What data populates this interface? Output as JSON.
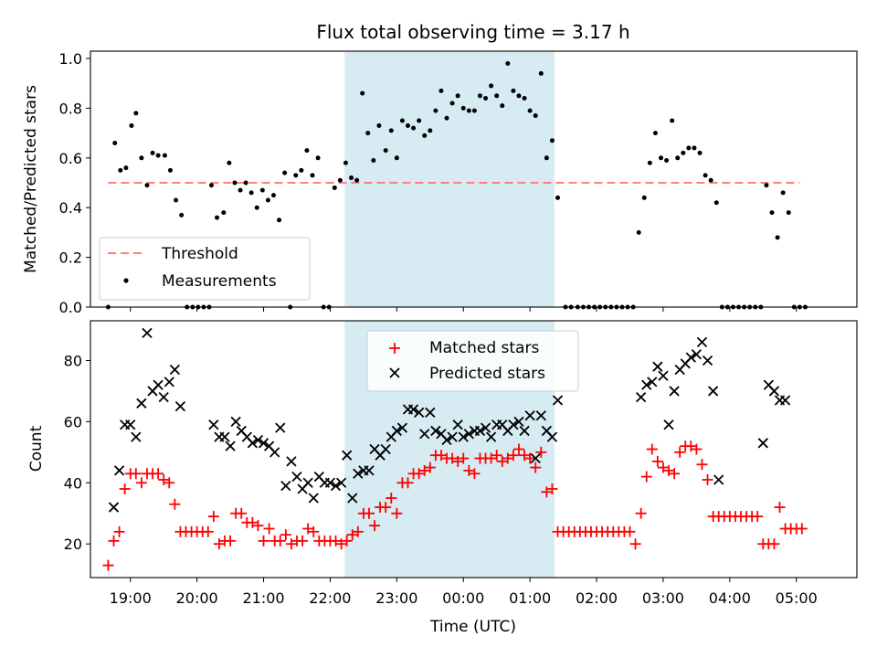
{
  "chart_data": [
    {
      "type": "scatter",
      "title": "Flux total observing time = 3.17 h",
      "xlabel": "",
      "ylabel": "Matched/Predicted stars",
      "x_tick_labels": [
        "19:00",
        "20:00",
        "21:00",
        "22:00",
        "23:00",
        "00:00",
        "01:00",
        "02:00",
        "03:00",
        "04:00",
        "05:00"
      ],
      "ylim": [
        0,
        1.0
      ],
      "y_ticks": [
        "0.0",
        "0.2",
        "0.4",
        "0.6",
        "0.8",
        "1.0"
      ],
      "shaded_interval": [
        "22:13",
        "01:22"
      ],
      "threshold": 0.5,
      "legend": [
        "Threshold",
        "Measurements"
      ],
      "legend_loc": "lower left",
      "colors": {
        "threshold": "#ff7f7f",
        "measurements": "#000000",
        "shade": "#add8e6"
      },
      "series": [
        {
          "name": "Measurements",
          "x": [
            "18:40",
            "18:46",
            "18:51",
            "18:56",
            "19:01",
            "19:05",
            "19:10",
            "19:15",
            "19:20",
            "19:25",
            "19:31",
            "19:36",
            "19:41",
            "19:46",
            "19:51",
            "19:56",
            "20:01",
            "20:06",
            "20:11",
            "20:13",
            "20:18",
            "20:24",
            "20:29",
            "20:34",
            "20:39",
            "20:44",
            "20:49",
            "20:54",
            "20:59",
            "21:04",
            "21:09",
            "21:14",
            "21:19",
            "21:24",
            "21:29",
            "21:34",
            "21:39",
            "21:44",
            "21:49",
            "21:54",
            "21:59",
            "22:04",
            "22:09",
            "22:14",
            "22:19",
            "22:24",
            "22:29",
            "22:34",
            "22:39",
            "22:44",
            "22:50",
            "22:55",
            "23:00",
            "23:05",
            "23:10",
            "23:15",
            "23:20",
            "23:25",
            "23:30",
            "23:35",
            "23:40",
            "23:45",
            "23:50",
            "23:55",
            "00:00",
            "00:05",
            "00:10",
            "00:15",
            "00:20",
            "00:25",
            "00:30",
            "00:35",
            "00:40",
            "00:45",
            "00:50",
            "00:55",
            "01:00",
            "01:05",
            "01:10",
            "01:15",
            "01:20",
            "01:25",
            "01:32",
            "01:37",
            "01:43",
            "01:48",
            "01:53",
            "01:58",
            "02:03",
            "02:08",
            "02:13",
            "02:18",
            "02:23",
            "02:28",
            "02:33",
            "02:38",
            "02:43",
            "02:48",
            "02:53",
            "02:58",
            "03:03",
            "03:08",
            "03:13",
            "03:18",
            "03:23",
            "03:28",
            "03:33",
            "03:38",
            "03:43",
            "03:48",
            "03:53",
            "03:58",
            "04:03",
            "04:08",
            "04:13",
            "04:18",
            "04:23",
            "04:28",
            "04:33",
            "04:38",
            "04:43",
            "04:48",
            "04:53",
            "04:58",
            "05:03",
            "05:08"
          ],
          "values": [
            0.0,
            0.66,
            0.55,
            0.56,
            0.73,
            0.78,
            0.6,
            0.49,
            0.62,
            0.61,
            0.61,
            0.55,
            0.43,
            0.37,
            0.0,
            0.0,
            0.0,
            0.0,
            0.0,
            0.49,
            0.36,
            0.38,
            0.58,
            0.5,
            0.47,
            0.5,
            0.46,
            0.4,
            0.47,
            0.43,
            0.45,
            0.35,
            0.54,
            0.0,
            0.53,
            0.55,
            0.63,
            0.53,
            0.6,
            0.0,
            0.0,
            0.48,
            0.51,
            0.58,
            0.52,
            0.51,
            0.86,
            0.7,
            0.59,
            0.73,
            0.63,
            0.71,
            0.6,
            0.75,
            0.73,
            0.72,
            0.75,
            0.69,
            0.71,
            0.79,
            0.87,
            0.76,
            0.82,
            0.85,
            0.8,
            0.79,
            0.79,
            0.85,
            0.84,
            0.89,
            0.85,
            0.81,
            0.98,
            0.87,
            0.85,
            0.84,
            0.79,
            0.77,
            0.94,
            0.6,
            0.67,
            0.44,
            0.0,
            0.0,
            0.0,
            0.0,
            0.0,
            0.0,
            0.0,
            0.0,
            0.0,
            0.0,
            0.0,
            0.0,
            0.0,
            0.3,
            0.44,
            0.58,
            0.7,
            0.6,
            0.59,
            0.75,
            0.6,
            0.62,
            0.64,
            0.64,
            0.62,
            0.53,
            0.51,
            0.42,
            0.0,
            0.0,
            0.0,
            0.0,
            0.0,
            0.0,
            0.0,
            0.0,
            0.49,
            0.38,
            0.28,
            0.46,
            0.38,
            0.0,
            0.0,
            0.0
          ]
        }
      ]
    },
    {
      "type": "scatter",
      "title": "",
      "xlabel": "Time (UTC)",
      "ylabel": "Count",
      "x_tick_labels": [
        "19:00",
        "20:00",
        "21:00",
        "22:00",
        "23:00",
        "00:00",
        "01:00",
        "02:00",
        "03:00",
        "04:00",
        "05:00"
      ],
      "ylim": [
        9,
        93
      ],
      "y_ticks": [
        "20",
        "40",
        "60",
        "80"
      ],
      "shaded_interval": [
        "22:13",
        "01:22"
      ],
      "legend": [
        "Matched stars",
        "Predicted stars"
      ],
      "legend_loc": "upper center",
      "colors": {
        "matched": "#ff0000",
        "predicted": "#000000",
        "shade": "#add8e6"
      },
      "series": [
        {
          "name": "Matched stars",
          "x": [
            "18:40",
            "18:45",
            "18:50",
            "18:55",
            "19:00",
            "19:05",
            "19:10",
            "19:15",
            "19:20",
            "19:25",
            "19:30",
            "19:35",
            "19:40",
            "19:45",
            "19:50",
            "19:55",
            "20:00",
            "20:05",
            "20:10",
            "20:15",
            "20:20",
            "20:25",
            "20:30",
            "20:35",
            "20:40",
            "20:45",
            "20:50",
            "20:55",
            "21:00",
            "21:05",
            "21:10",
            "21:15",
            "21:20",
            "21:25",
            "21:30",
            "21:35",
            "21:40",
            "21:45",
            "21:50",
            "21:55",
            "22:00",
            "22:05",
            "22:10",
            "22:15",
            "22:20",
            "22:25",
            "22:30",
            "22:35",
            "22:40",
            "22:45",
            "22:50",
            "22:55",
            "23:00",
            "23:05",
            "23:10",
            "23:15",
            "23:20",
            "23:25",
            "23:30",
            "23:35",
            "23:40",
            "23:45",
            "23:50",
            "23:55",
            "00:00",
            "00:05",
            "00:10",
            "00:15",
            "00:20",
            "00:25",
            "00:30",
            "00:35",
            "00:40",
            "00:45",
            "00:50",
            "00:55",
            "01:00",
            "01:05",
            "01:10",
            "01:15",
            "01:20",
            "01:25",
            "01:30",
            "01:35",
            "01:40",
            "01:45",
            "01:50",
            "01:55",
            "02:00",
            "02:05",
            "02:10",
            "02:15",
            "02:20",
            "02:25",
            "02:30",
            "02:35",
            "02:40",
            "02:45",
            "02:50",
            "02:55",
            "03:00",
            "03:05",
            "03:10",
            "03:15",
            "03:20",
            "03:25",
            "03:30",
            "03:35",
            "03:40",
            "03:45",
            "03:50",
            "03:55",
            "04:00",
            "04:05",
            "04:10",
            "04:15",
            "04:20",
            "04:25",
            "04:30",
            "04:35",
            "04:40",
            "04:45",
            "04:50",
            "04:55",
            "05:00",
            "05:05"
          ],
          "values": [
            13,
            21,
            24,
            38,
            43,
            43,
            40,
            43,
            43,
            43,
            41,
            40,
            33,
            24,
            24,
            24,
            24,
            24,
            24,
            29,
            20,
            21,
            21,
            30,
            30,
            27,
            27,
            26,
            21,
            25,
            21,
            21,
            23,
            20,
            21,
            21,
            25,
            24,
            21,
            21,
            21,
            21,
            20,
            21,
            23,
            24,
            30,
            30,
            26,
            32,
            32,
            35,
            30,
            40,
            40,
            43,
            43,
            44,
            45,
            49,
            49,
            48,
            48,
            47,
            48,
            44,
            43,
            48,
            48,
            48,
            49,
            47,
            48,
            49,
            51,
            49,
            48,
            45,
            50,
            37,
            38,
            24,
            24,
            24,
            24,
            24,
            24,
            24,
            24,
            24,
            24,
            24,
            24,
            24,
            24,
            20,
            30,
            42,
            51,
            47,
            45,
            44,
            43,
            50,
            52,
            52,
            51,
            46,
            41,
            29,
            29,
            29,
            29,
            29,
            29,
            29,
            29,
            29,
            20,
            20,
            20,
            32,
            25,
            25,
            25,
            25
          ]
        },
        {
          "name": "Predicted stars",
          "x": [
            "18:45",
            "18:50",
            "18:55",
            "19:00",
            "19:05",
            "19:10",
            "19:15",
            "19:20",
            "19:25",
            "19:30",
            "19:35",
            "19:40",
            "19:45",
            "20:15",
            "20:20",
            "20:25",
            "20:30",
            "20:35",
            "20:40",
            "20:45",
            "20:50",
            "20:55",
            "21:00",
            "21:05",
            "21:10",
            "21:15",
            "21:20",
            "21:25",
            "21:30",
            "21:35",
            "21:40",
            "21:45",
            "21:50",
            "21:55",
            "22:00",
            "22:05",
            "22:10",
            "22:15",
            "22:20",
            "22:25",
            "22:30",
            "22:35",
            "22:40",
            "22:45",
            "22:50",
            "22:55",
            "23:00",
            "23:05",
            "23:10",
            "23:15",
            "23:20",
            "23:25",
            "23:30",
            "23:35",
            "23:40",
            "23:45",
            "23:50",
            "23:55",
            "00:00",
            "00:05",
            "00:10",
            "00:15",
            "00:20",
            "00:25",
            "00:30",
            "00:35",
            "00:40",
            "00:45",
            "00:50",
            "00:55",
            "01:00",
            "01:05",
            "01:10",
            "01:15",
            "01:20",
            "01:25",
            "02:40",
            "02:45",
            "02:50",
            "02:55",
            "03:00",
            "03:05",
            "03:10",
            "03:15",
            "03:20",
            "03:25",
            "03:30",
            "03:35",
            "03:40",
            "03:45",
            "03:50",
            "04:30",
            "04:35",
            "04:40",
            "04:45",
            "04:50"
          ],
          "values": [
            32,
            44,
            59,
            59,
            55,
            66,
            89,
            70,
            72,
            68,
            73,
            77,
            65,
            59,
            55,
            55,
            52,
            60,
            57,
            55,
            53,
            54,
            53,
            52,
            50,
            58,
            39,
            47,
            42,
            38,
            40,
            35,
            42,
            40,
            40,
            39,
            40,
            49,
            35,
            43,
            44,
            44,
            51,
            49,
            51,
            55,
            57,
            58,
            64,
            64,
            63,
            56,
            63,
            57,
            56,
            54,
            55,
            59,
            55,
            56,
            57,
            57,
            58,
            55,
            59,
            59,
            57,
            59,
            60,
            57,
            62,
            48,
            62,
            57,
            55,
            67,
            68,
            72,
            73,
            78,
            75,
            59,
            70,
            77,
            79,
            81,
            82,
            86,
            80,
            70,
            41,
            53,
            72,
            70,
            67,
            67
          ]
        }
      ]
    }
  ]
}
